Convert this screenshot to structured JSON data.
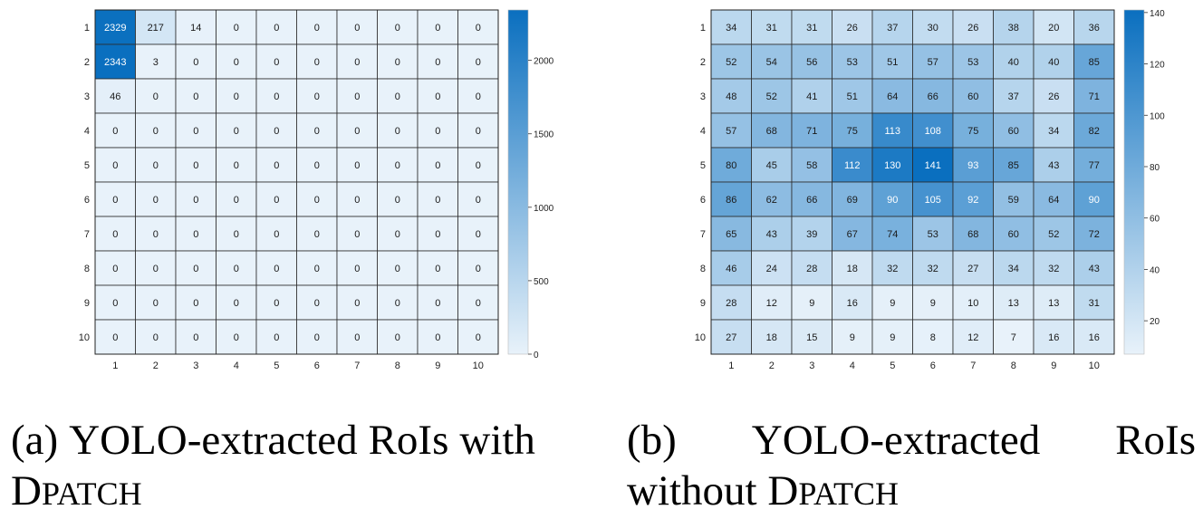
{
  "chart_data": [
    {
      "type": "heatmap",
      "row_labels": [
        "1",
        "2",
        "3",
        "4",
        "5",
        "6",
        "7",
        "8",
        "9",
        "10"
      ],
      "col_labels": [
        "1",
        "2",
        "3",
        "4",
        "5",
        "6",
        "7",
        "8",
        "9",
        "10"
      ],
      "values": [
        [
          2329,
          217,
          14,
          0,
          0,
          0,
          0,
          0,
          0,
          0
        ],
        [
          2343,
          3,
          0,
          0,
          0,
          0,
          0,
          0,
          0,
          0
        ],
        [
          46,
          0,
          0,
          0,
          0,
          0,
          0,
          0,
          0,
          0
        ],
        [
          0,
          0,
          0,
          0,
          0,
          0,
          0,
          0,
          0,
          0
        ],
        [
          0,
          0,
          0,
          0,
          0,
          0,
          0,
          0,
          0,
          0
        ],
        [
          0,
          0,
          0,
          0,
          0,
          0,
          0,
          0,
          0,
          0
        ],
        [
          0,
          0,
          0,
          0,
          0,
          0,
          0,
          0,
          0,
          0
        ],
        [
          0,
          0,
          0,
          0,
          0,
          0,
          0,
          0,
          0,
          0
        ],
        [
          0,
          0,
          0,
          0,
          0,
          0,
          0,
          0,
          0,
          0
        ],
        [
          0,
          0,
          0,
          0,
          0,
          0,
          0,
          0,
          0,
          0
        ]
      ],
      "colorbar_range": [
        0,
        2343
      ],
      "colorbar_ticks": [
        0,
        500,
        1000,
        1500,
        2000
      ],
      "colormap": [
        "#e8f2fa",
        "#0a6fbf"
      ]
    },
    {
      "type": "heatmap",
      "row_labels": [
        "1",
        "2",
        "3",
        "4",
        "5",
        "6",
        "7",
        "8",
        "9",
        "10"
      ],
      "col_labels": [
        "1",
        "2",
        "3",
        "4",
        "5",
        "6",
        "7",
        "8",
        "9",
        "10"
      ],
      "values": [
        [
          34,
          31,
          31,
          26,
          37,
          30,
          26,
          38,
          20,
          36
        ],
        [
          52,
          54,
          56,
          53,
          51,
          57,
          53,
          40,
          40,
          85
        ],
        [
          48,
          52,
          41,
          51,
          64,
          66,
          60,
          37,
          26,
          71
        ],
        [
          57,
          68,
          71,
          75,
          113,
          108,
          75,
          60,
          34,
          82
        ],
        [
          80,
          45,
          58,
          112,
          130,
          141,
          93,
          85,
          43,
          77
        ],
        [
          86,
          62,
          66,
          69,
          90,
          105,
          92,
          59,
          64,
          90
        ],
        [
          65,
          43,
          39,
          67,
          74,
          53,
          68,
          60,
          52,
          72
        ],
        [
          46,
          24,
          28,
          18,
          32,
          32,
          27,
          34,
          32,
          43
        ],
        [
          28,
          12,
          9,
          16,
          9,
          9,
          10,
          13,
          13,
          31
        ],
        [
          27,
          18,
          15,
          9,
          9,
          8,
          12,
          7,
          16,
          16
        ]
      ],
      "colorbar_range": [
        7,
        141
      ],
      "colorbar_ticks": [
        20,
        40,
        60,
        80,
        100,
        120,
        140
      ],
      "colormap": [
        "#e8f2fa",
        "#0a6fbf"
      ]
    }
  ],
  "captions": {
    "a": {
      "line1_words": [
        "(a)",
        "YOLO-extracted",
        "RoIs",
        "with"
      ],
      "line2_pre": "D",
      "line2_sc": "PATCH"
    },
    "b": {
      "line1_words": [
        "(b)",
        "YOLO-extracted",
        "RoIs"
      ],
      "line2_pre": "without D",
      "line2_sc": "PATCH"
    }
  }
}
